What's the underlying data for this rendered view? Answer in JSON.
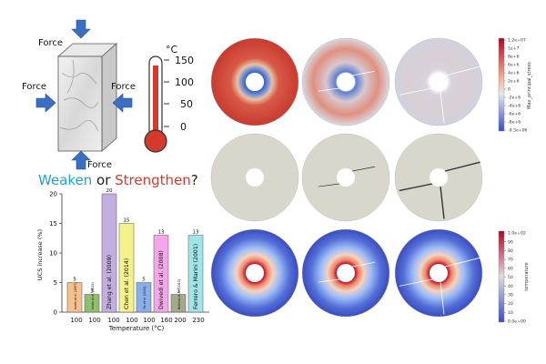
{
  "force": {
    "top": "Force",
    "left": "Force",
    "right": "Force",
    "bottom": "Force"
  },
  "thermometer": {
    "unit": "°C",
    "ticks": [
      "150",
      "100",
      "50",
      "0"
    ]
  },
  "headline": {
    "word1": "Weaken",
    "connector": " or ",
    "word2": "Strengthen",
    "tail": "?"
  },
  "chart_data": {
    "type": "bar",
    "xlabel": "Temperature (°C)",
    "ylabel": "UCS increase (%)",
    "ylim": [
      0,
      20
    ],
    "yticks": [
      "0",
      "5",
      "10",
      "15",
      "20"
    ],
    "bars": [
      {
        "x": "100",
        "value": 5,
        "label": "Inada et al. (1997)",
        "color": "#f5c08c"
      },
      {
        "x": "100",
        "value": 3,
        "label": "Inada et al. (2015)",
        "color": "#8fbf6a"
      },
      {
        "x": "100",
        "value": 20,
        "label": "Zhang et al. (2009)",
        "color": "#c3aee0"
      },
      {
        "x": "100",
        "value": 15,
        "label": "Chen et al. (2014)",
        "color": "#f4f28a"
      },
      {
        "x": "100",
        "value": 5,
        "label": "Yin et al. (2015)",
        "color": "#8aaee6"
      },
      {
        "x": "160",
        "value": 13,
        "label": "Dwivedi et al. (2008)",
        "color": "#f4a6e8"
      },
      {
        "x": "200",
        "value": 3,
        "label": "Brotóns et al. (2013)",
        "color": "#a7a98a"
      },
      {
        "x": "230",
        "value": 13,
        "label": "Ferrero & Marini (2001)",
        "color": "#9fe6ea"
      }
    ]
  },
  "colorbar_stress": {
    "title": "Max_principal_stress",
    "ticks": [
      "1.2e+07",
      "1e+7",
      "8e+6",
      "6e+6",
      "4e+6",
      "2e+6",
      "0",
      "-2e+6",
      "-4e+6",
      "-6e+6",
      "-8e+6",
      "-9.3e+06"
    ]
  },
  "colorbar_temp": {
    "title": "temperature",
    "ticks": [
      "1.0e+02",
      "90",
      "80",
      "70",
      "60",
      "50",
      "40",
      "30",
      "20",
      "10",
      "0.0e+00"
    ]
  },
  "colors": {
    "weaken": "#1fa3cc",
    "strengthen": "#d33a2c",
    "force_arrow": "#3a6fc4",
    "disc_gray": "#d9d6cc"
  }
}
